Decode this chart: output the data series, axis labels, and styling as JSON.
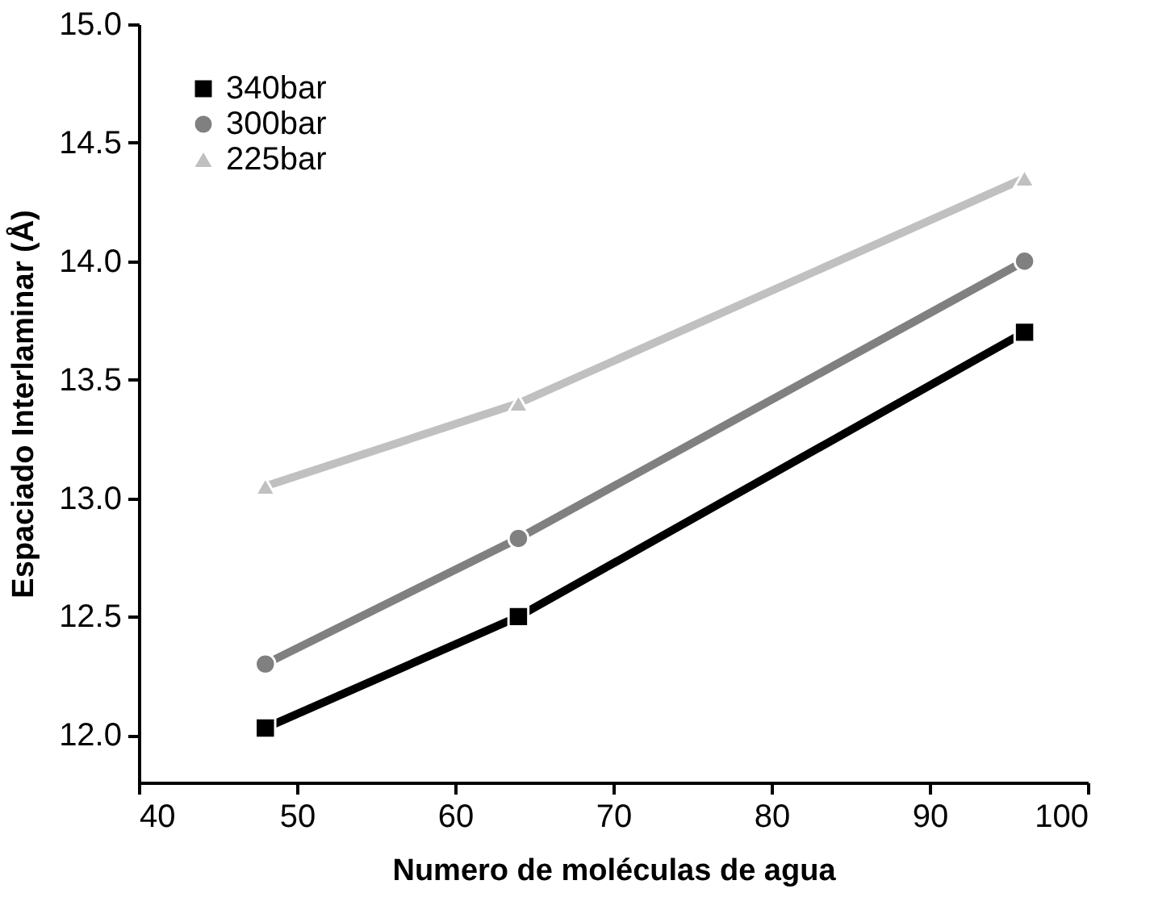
{
  "chart_data": {
    "type": "line",
    "xlabel": "Numero de moléculas de agua",
    "ylabel": "Espaciado Interlaminar (Å)",
    "x": [
      48,
      64,
      96
    ],
    "series": [
      {
        "name": "340bar",
        "color": "#000000",
        "marker": "square",
        "values": [
          12.03,
          12.5,
          13.7
        ]
      },
      {
        "name": "300bar",
        "color": "#808080",
        "marker": "circle",
        "values": [
          12.3,
          12.83,
          14.0
        ]
      },
      {
        "name": "225bar",
        "color": "#c0c0c0",
        "marker": "triangle",
        "values": [
          13.05,
          13.4,
          14.35
        ]
      }
    ],
    "xlim": [
      40,
      100
    ],
    "xticks": [
      40,
      50,
      60,
      70,
      80,
      90,
      100
    ],
    "ylim": [
      11.8,
      15.0
    ],
    "yticks": [
      {
        "value": 12,
        "label": "12.0"
      },
      12.5,
      {
        "value": 13,
        "label": "13.0"
      },
      13.5,
      {
        "value": 14,
        "label": "14.0"
      },
      14.5,
      {
        "value": 15,
        "label": "15.0"
      }
    ],
    "grid": false,
    "legend": "top left",
    "line_style": "solid"
  }
}
